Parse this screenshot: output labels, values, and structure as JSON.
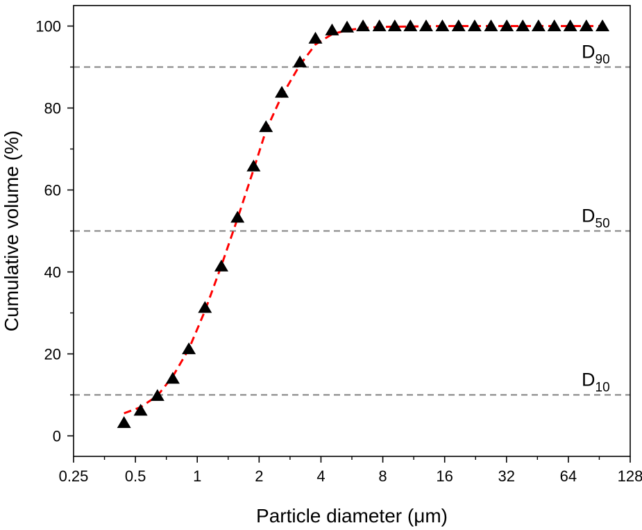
{
  "chart_data": {
    "type": "scatter",
    "xlabel": "Particle diameter (μm)",
    "ylabel": "Cumulative volume (%)",
    "x_scale": "log2",
    "xlim": [
      0.25,
      128
    ],
    "ylim": [
      -5,
      105
    ],
    "x_ticks": [
      0.25,
      0.5,
      1,
      2,
      4,
      8,
      16,
      32,
      64,
      128
    ],
    "x_tick_labels": [
      "0.25",
      "0.5",
      "1",
      "2",
      "4",
      "8",
      "16",
      "32",
      "64",
      "128"
    ],
    "y_ticks": [
      0,
      20,
      40,
      60,
      80,
      100
    ],
    "y_tick_labels": [
      "0",
      "20",
      "40",
      "60",
      "80",
      "100"
    ],
    "grid": false,
    "reference_lines": [
      {
        "y": 90,
        "label_main": "D",
        "label_sub": "90",
        "color": "#808080"
      },
      {
        "y": 50,
        "label_main": "D",
        "label_sub": "50",
        "color": "#808080"
      },
      {
        "y": 10,
        "label_main": "D",
        "label_sub": "10",
        "color": "#808080"
      }
    ],
    "series": [
      {
        "marker": "triangle",
        "color": "#000000",
        "points": [
          {
            "x": 0.44,
            "y": 3.2
          },
          {
            "x": 0.53,
            "y": 6.2
          },
          {
            "x": 0.64,
            "y": 9.8
          },
          {
            "x": 0.76,
            "y": 14.0
          },
          {
            "x": 0.91,
            "y": 21.2
          },
          {
            "x": 1.09,
            "y": 31.3
          },
          {
            "x": 1.31,
            "y": 41.4
          },
          {
            "x": 1.57,
            "y": 53.3
          },
          {
            "x": 1.88,
            "y": 65.8
          },
          {
            "x": 2.16,
            "y": 75.4
          },
          {
            "x": 2.58,
            "y": 83.8
          },
          {
            "x": 3.16,
            "y": 91.2
          },
          {
            "x": 3.76,
            "y": 97.0
          },
          {
            "x": 4.53,
            "y": 99.0
          },
          {
            "x": 5.36,
            "y": 99.7
          },
          {
            "x": 6.41,
            "y": 100.0
          },
          {
            "x": 7.7,
            "y": 100.0
          },
          {
            "x": 9.15,
            "y": 100.0
          },
          {
            "x": 10.9,
            "y": 100.0
          },
          {
            "x": 13.0,
            "y": 100.0
          },
          {
            "x": 15.6,
            "y": 100.0
          },
          {
            "x": 18.7,
            "y": 100.0
          },
          {
            "x": 22.4,
            "y": 100.0
          },
          {
            "x": 26.9,
            "y": 100.0
          },
          {
            "x": 32.1,
            "y": 100.0
          },
          {
            "x": 38.4,
            "y": 100.0
          },
          {
            "x": 45.8,
            "y": 100.0
          },
          {
            "x": 54.7,
            "y": 100.0
          },
          {
            "x": 65.4,
            "y": 100.0
          },
          {
            "x": 78.3,
            "y": 100.0
          },
          {
            "x": 93.8,
            "y": 100.0
          }
        ]
      },
      {
        "type": "line",
        "style": "dashed",
        "color": "#ff0000",
        "points": [
          {
            "x": 0.44,
            "y": 5.5
          },
          {
            "x": 0.53,
            "y": 7.0
          },
          {
            "x": 0.64,
            "y": 9.8
          },
          {
            "x": 0.76,
            "y": 14.5
          },
          {
            "x": 0.91,
            "y": 21.2
          },
          {
            "x": 1.09,
            "y": 30.5
          },
          {
            "x": 1.31,
            "y": 41.5
          },
          {
            "x": 1.57,
            "y": 53.0
          },
          {
            "x": 1.88,
            "y": 65.0
          },
          {
            "x": 2.16,
            "y": 74.5
          },
          {
            "x": 2.58,
            "y": 83.0
          },
          {
            "x": 3.16,
            "y": 90.5
          },
          {
            "x": 3.76,
            "y": 95.5
          },
          {
            "x": 4.53,
            "y": 98.0
          },
          {
            "x": 5.36,
            "y": 99.0
          },
          {
            "x": 6.41,
            "y": 99.5
          },
          {
            "x": 7.7,
            "y": 99.8
          },
          {
            "x": 15.6,
            "y": 100.0
          },
          {
            "x": 93.8,
            "y": 100.0
          }
        ]
      }
    ]
  }
}
